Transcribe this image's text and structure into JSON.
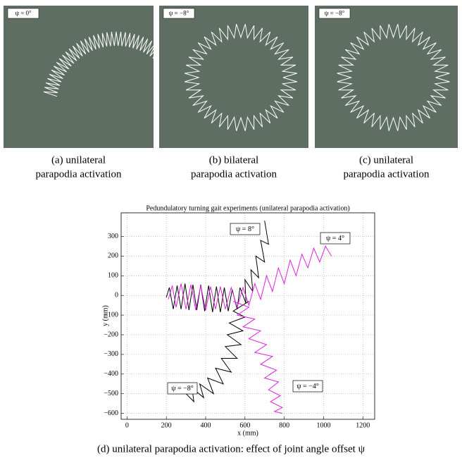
{
  "panels": [
    {
      "label": "ψ = 0°",
      "caption": [
        "(a) unilateral",
        "parapodia activation"
      ]
    },
    {
      "label": "ψ = −8°",
      "caption": [
        "(b) bilateral",
        "parapodia activation"
      ]
    },
    {
      "label": "ψ = −8°",
      "caption": [
        "(c) unilateral",
        "parapodia activation"
      ]
    }
  ],
  "chart_data": {
    "type": "line",
    "title": "Pedundulatory turning gait experiments (unilateral parapodia activation)",
    "x_label": "x (mm)",
    "y_label": "y (mm)",
    "xlim": [
      -30,
      1260
    ],
    "ylim": [
      -630,
      420
    ],
    "xticks": [
      0,
      200,
      400,
      600,
      800,
      1000,
      1200
    ],
    "yticks": [
      {
        "value": -600,
        "label": "−600"
      },
      {
        "value": -500,
        "label": "−500"
      },
      {
        "value": -400,
        "label": "−400"
      },
      {
        "value": -300,
        "label": "−300"
      },
      {
        "value": -200,
        "label": "−200"
      },
      {
        "value": -100,
        "label": "−100"
      },
      0,
      100,
      200,
      300
    ],
    "grid": true,
    "series": [
      {
        "name": "ψ = 8°",
        "color": "#000000",
        "x": [
          200,
          215,
          235,
          255,
          275,
          295,
          315,
          335,
          355,
          375,
          395,
          415,
          435,
          455,
          475,
          495,
          515,
          535,
          560,
          575,
          605,
          600,
          640,
          630,
          670,
          655,
          700,
          680,
          720,
          700
        ],
        "y": [
          -10,
          40,
          -70,
          50,
          -70,
          60,
          -75,
          55,
          -75,
          55,
          -80,
          50,
          -85,
          45,
          -85,
          40,
          -80,
          30,
          -70,
          40,
          -40,
          80,
          20,
          130,
          90,
          200,
          170,
          280,
          260,
          380
        ]
      },
      {
        "name": "ψ = 4°",
        "color": "#e020e0",
        "x": [
          210,
          230,
          250,
          275,
          300,
          325,
          350,
          375,
          400,
          425,
          450,
          475,
          500,
          530,
          560,
          590,
          620,
          650,
          680,
          710,
          740,
          770,
          800,
          830,
          860,
          890,
          920,
          950,
          980,
          1010,
          1040
        ],
        "y": [
          -20,
          50,
          -60,
          60,
          -70,
          55,
          -75,
          50,
          -75,
          45,
          -70,
          45,
          -70,
          40,
          -60,
          40,
          -50,
          60,
          -20,
          100,
          20,
          140,
          60,
          180,
          100,
          210,
          140,
          240,
          170,
          250,
          200
        ]
      },
      {
        "name": "ψ = −8°",
        "color": "#000000",
        "x": [
          620,
          540,
          600,
          520,
          590,
          510,
          580,
          500,
          560,
          480,
          530,
          450,
          490,
          410,
          440,
          370,
          390,
          330,
          340,
          300
        ],
        "y": [
          -30,
          -80,
          -110,
          -140,
          -180,
          -200,
          -250,
          -260,
          -320,
          -320,
          -390,
          -370,
          -450,
          -420,
          -500,
          -450,
          -520,
          -470,
          -540,
          -500
        ]
      },
      {
        "name": "ψ = −4°",
        "color": "#e020e0",
        "x": [
          540,
          620,
          560,
          650,
          590,
          680,
          620,
          710,
          650,
          740,
          680,
          760,
          700,
          770,
          720,
          780,
          730,
          790,
          750,
          790
        ],
        "y": [
          -30,
          -60,
          -100,
          -120,
          -160,
          -180,
          -220,
          -250,
          -290,
          -310,
          -350,
          -380,
          -420,
          -440,
          -480,
          -510,
          -540,
          -570,
          -590,
          -600
        ]
      }
    ]
  },
  "caption": "(d) unilateral parapodia activation: effect of joint angle offset ψ"
}
